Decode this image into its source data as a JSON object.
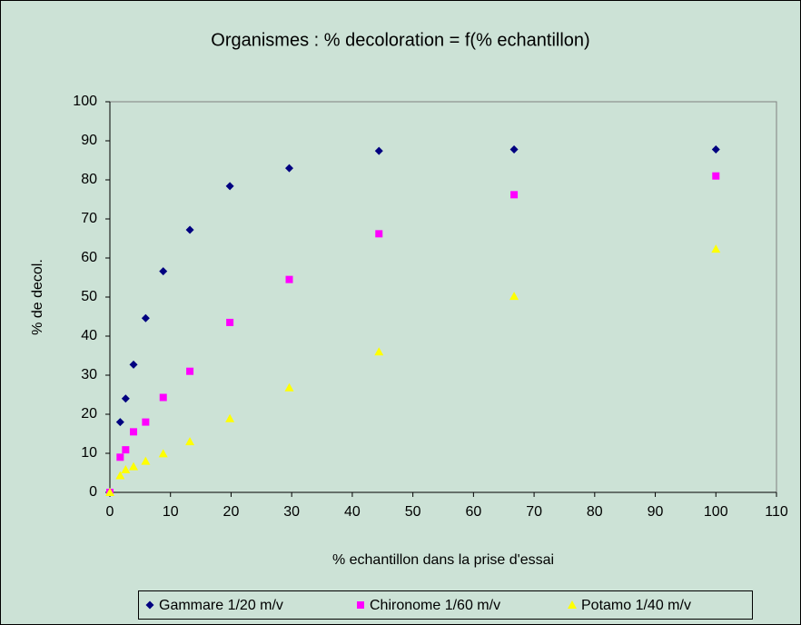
{
  "chart_data": {
    "type": "scatter",
    "title": "Organismes : % decoloration = f(% echantillon)",
    "x_label": "% echantillon dans la prise d'essai",
    "y_label": "% de decol.",
    "x": [
      0,
      1.7,
      2.6,
      3.9,
      5.9,
      8.8,
      13.2,
      19.8,
      29.6,
      44.4,
      66.7,
      100
    ],
    "series": [
      {
        "name": "Gammare 1/20 m/v",
        "color": "#000080",
        "marker": "diamond",
        "values": [
          0,
          18,
          24,
          32.7,
          44.6,
          56.6,
          67.2,
          78.4,
          83,
          87.4,
          87.8,
          87.8
        ]
      },
      {
        "name": "Chironome 1/60 m/v",
        "color": "#ff00ff",
        "marker": "square",
        "values": [
          0,
          9,
          10.9,
          15.5,
          18,
          24.3,
          31,
          43.5,
          54.5,
          66.2,
          76.2,
          81
        ]
      },
      {
        "name": "Potamo 1/40 m/v",
        "color": "#ffff00",
        "marker": "triangle",
        "values": [
          0,
          4.3,
          5.8,
          6.6,
          8,
          9.9,
          13,
          18.9,
          26.8,
          36,
          50.2,
          62.3
        ]
      }
    ],
    "xlim": [
      0,
      110
    ],
    "xticks": [
      0,
      10,
      20,
      30,
      40,
      50,
      60,
      70,
      80,
      90,
      100,
      110
    ],
    "ylim": [
      0,
      100
    ],
    "yticks": [
      0,
      10,
      20,
      30,
      40,
      50,
      60,
      70,
      80,
      90,
      100
    ],
    "grid": false,
    "legend": "bottom"
  }
}
